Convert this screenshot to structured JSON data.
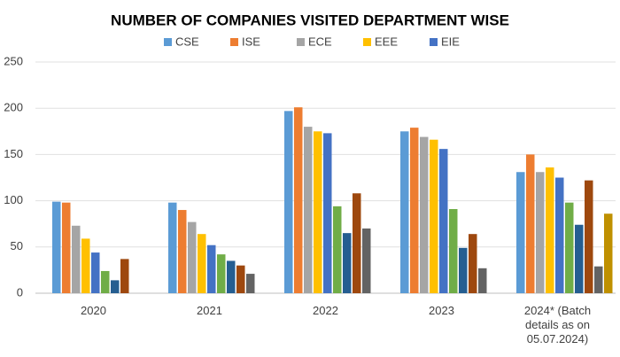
{
  "chart_data": {
    "type": "bar",
    "title": "NUMBER OF COMPANIES VISITED DEPARTMENT WISE",
    "categories": [
      "2020",
      "2021",
      "2022",
      "2023",
      "2024* (Batch details as on 05.07.2024)"
    ],
    "series": [
      {
        "name": "CSE",
        "color": "#5b9bd5",
        "values": [
          99,
          98,
          197,
          175,
          131
        ]
      },
      {
        "name": "ISE",
        "color": "#ed7d31",
        "values": [
          98,
          90,
          201,
          179,
          150
        ]
      },
      {
        "name": "ECE",
        "color": "#a5a5a5",
        "values": [
          73,
          77,
          180,
          169,
          131
        ]
      },
      {
        "name": "EEE",
        "color": "#ffc000",
        "values": [
          59,
          64,
          175,
          166,
          136
        ]
      },
      {
        "name": "EIE",
        "color": "#4472c4",
        "values": [
          44,
          52,
          173,
          156,
          125
        ]
      },
      {
        "color": "#70ad47",
        "values": [
          24,
          42,
          94,
          91,
          98
        ]
      },
      {
        "color": "#255e91",
        "values": [
          14,
          35,
          65,
          49,
          74
        ]
      },
      {
        "color": "#9e480e",
        "values": [
          37,
          30,
          108,
          64,
          122
        ]
      },
      {
        "color": "#636363",
        "values": [
          null,
          21,
          70,
          27,
          29
        ]
      },
      {
        "color": "#bf9000",
        "values": [
          null,
          null,
          null,
          null,
          86
        ]
      }
    ],
    "ylim": [
      0,
      250
    ],
    "yticks": [
      0,
      50,
      100,
      150,
      200,
      250
    ],
    "grid": true
  }
}
